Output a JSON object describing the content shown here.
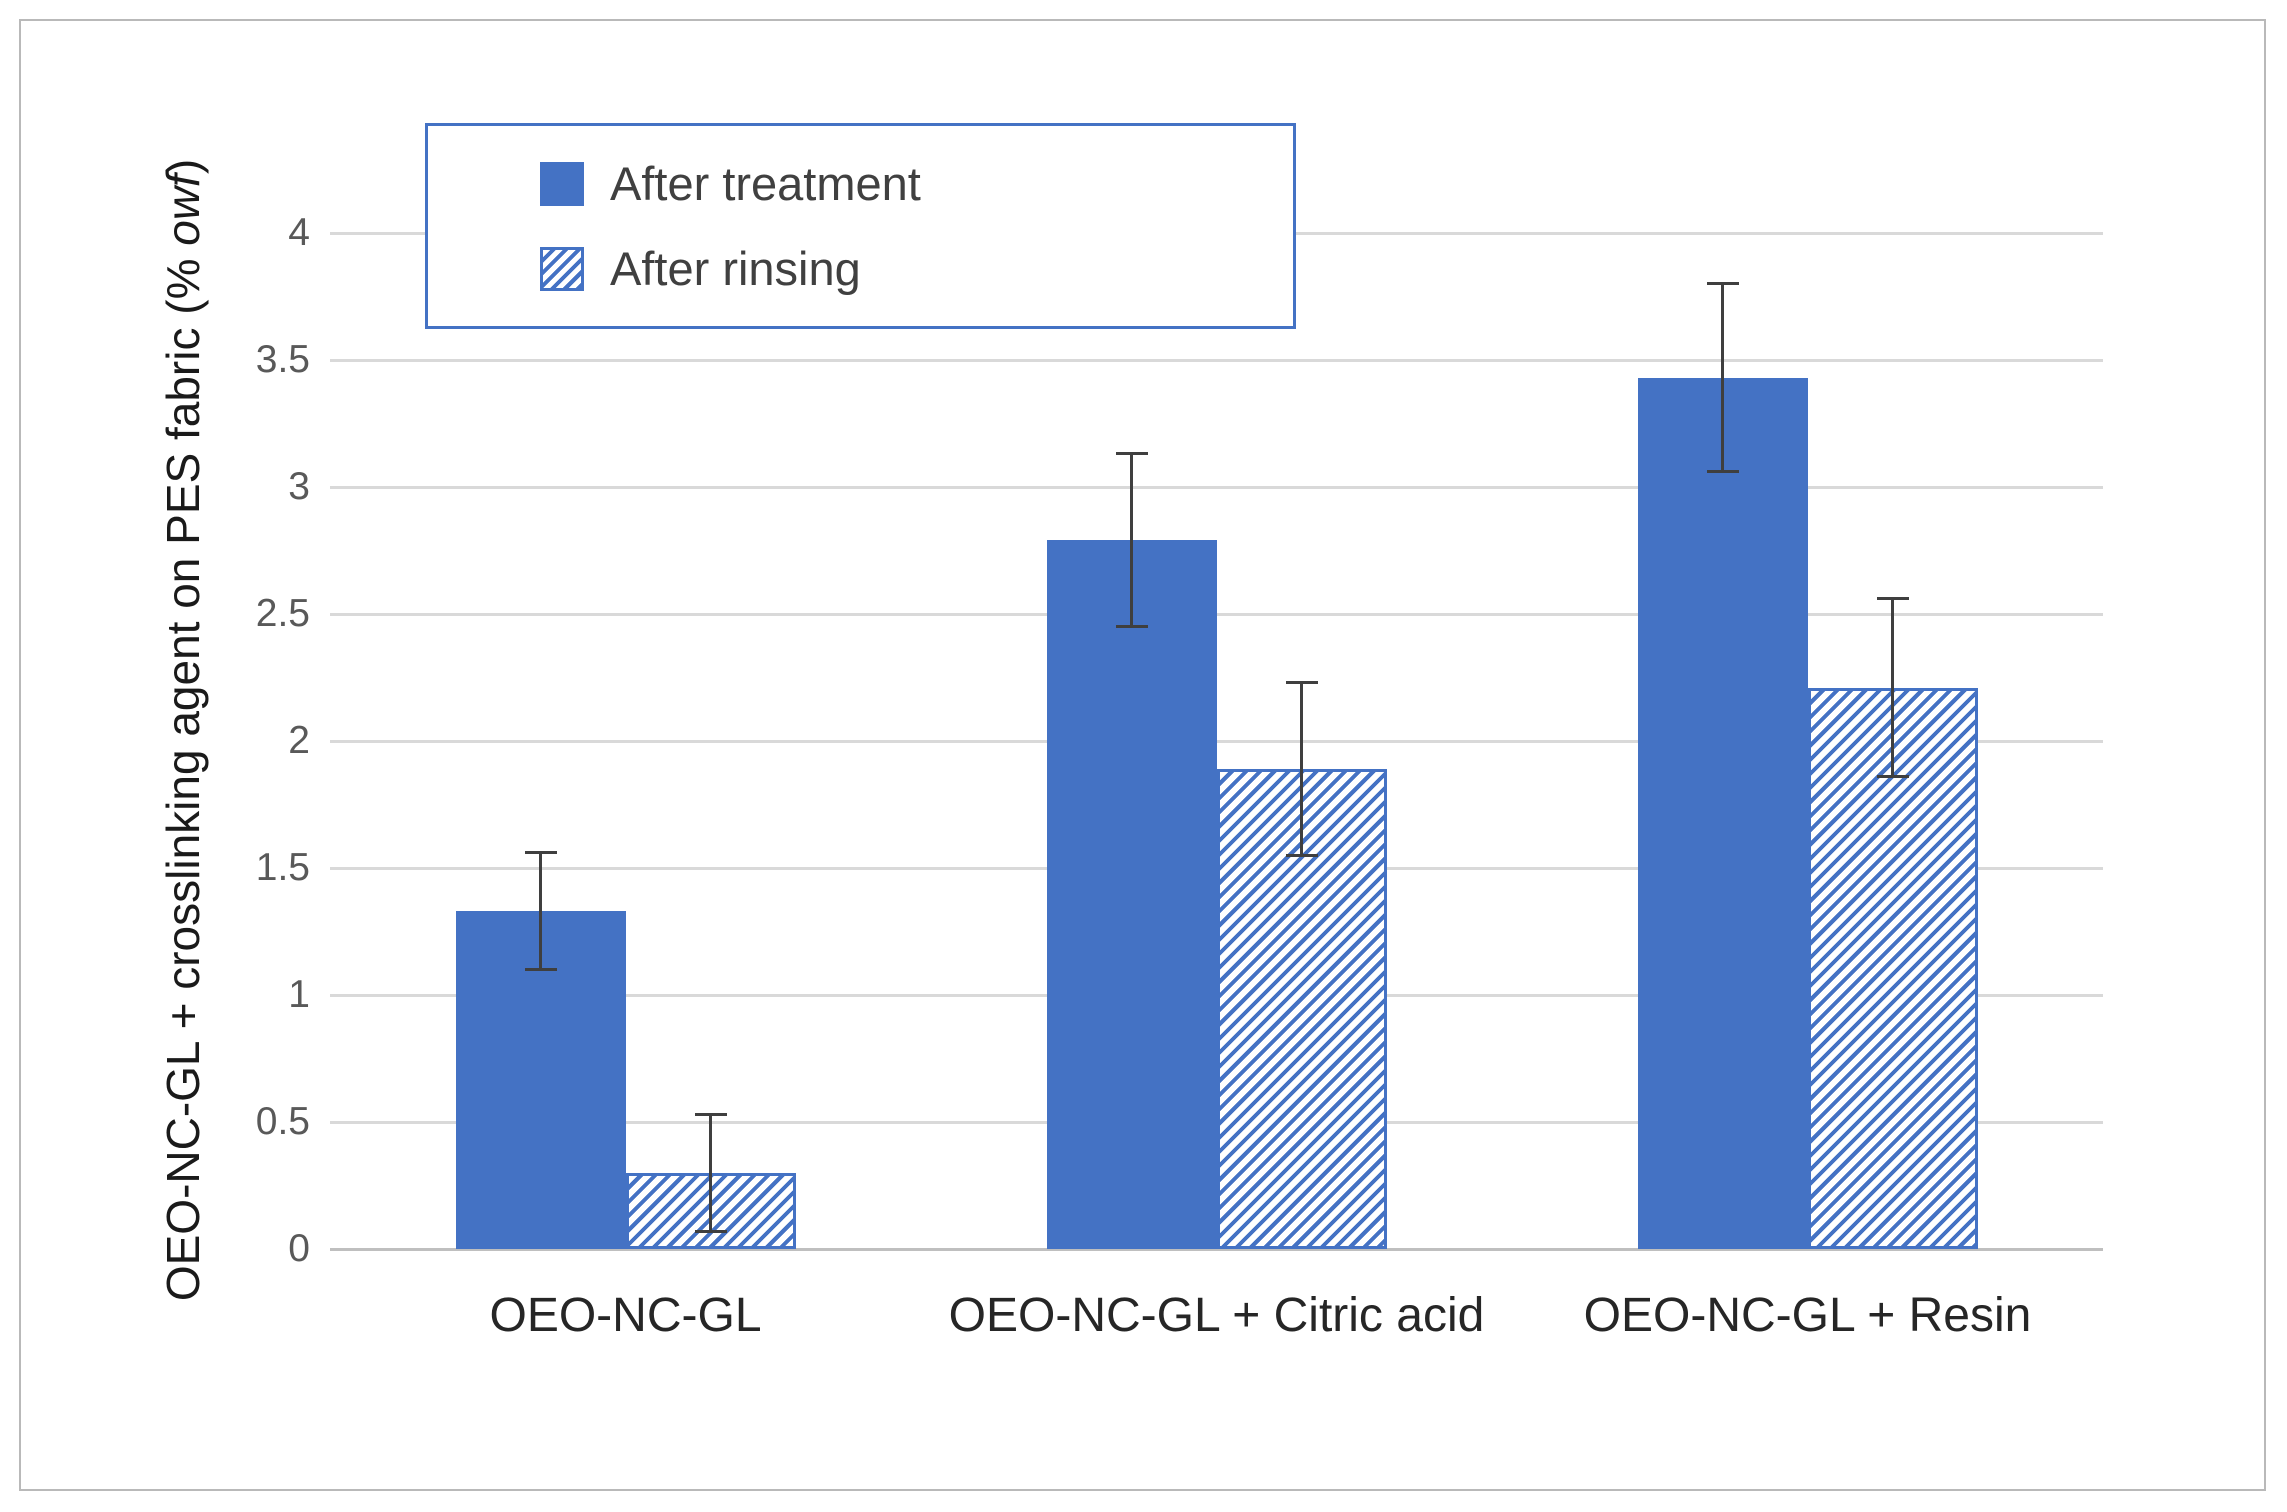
{
  "chart_data": {
    "type": "bar",
    "title": "",
    "categories": [
      "OEO-NC-GL",
      "OEO-NC-GL + Citric acid",
      "OEO-NC-GL + Resin"
    ],
    "series": [
      {
        "name": "After treatment",
        "style": "solid",
        "values": [
          1.33,
          2.79,
          3.43
        ],
        "errors": [
          0.23,
          0.34,
          0.37
        ]
      },
      {
        "name": "After rinsing",
        "style": "hatched",
        "values": [
          0.3,
          1.89,
          2.21
        ],
        "errors": [
          0.23,
          0.34,
          0.35
        ]
      }
    ],
    "xlabel": "",
    "ylabel": "OEO-NC-GL + crosslinking agent on PES fabric (% owf)",
    "ylabel_prefix": "OEO-NC-GL + crosslinking agent on PES fabric (% ",
    "ylabel_italic": "owf",
    "ylabel_suffix": ")",
    "ylim": [
      0,
      4
    ],
    "ytick_step": 0.5,
    "yticks": [
      "0",
      "0.5",
      "1",
      "1.5",
      "2",
      "2.5",
      "3",
      "3.5",
      "4"
    ],
    "grid": true,
    "legend_position": "inside-top-left",
    "error_bars": true,
    "colors": {
      "bar_fill": "#4472c4",
      "hatch_stripe": "#4472c4",
      "legend_border": "#4472c4",
      "gridline": "#d9d9d9",
      "axis_line": "#bfbfbf",
      "error_bar": "#3f3f3f",
      "tick_text": "#595959",
      "category_text": "#262626"
    }
  }
}
